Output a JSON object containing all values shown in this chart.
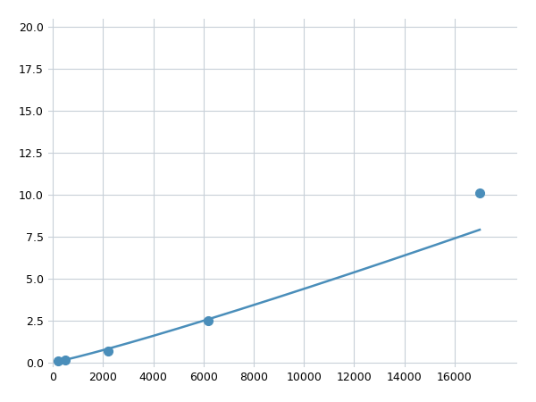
{
  "x_data": [
    200,
    500,
    800,
    2200,
    6200,
    17000
  ],
  "y_data": [
    0.08,
    0.15,
    0.2,
    0.65,
    2.5,
    10.1
  ],
  "marker_indices": [
    0,
    1,
    3,
    4,
    5
  ],
  "line_color": "#4a8eba",
  "marker_color": "#4a8eba",
  "marker_size": 7,
  "xlim": [
    -200,
    18500
  ],
  "ylim": [
    -0.3,
    20.5
  ],
  "xticks": [
    0,
    2000,
    4000,
    6000,
    8000,
    10000,
    12000,
    14000,
    16000
  ],
  "yticks": [
    0.0,
    2.5,
    5.0,
    7.5,
    10.0,
    12.5,
    15.0,
    17.5,
    20.0
  ],
  "grid_color": "#c8d0d8",
  "background_color": "#ffffff",
  "linewidth": 1.8,
  "figsize": [
    6.0,
    4.5
  ],
  "dpi": 100
}
